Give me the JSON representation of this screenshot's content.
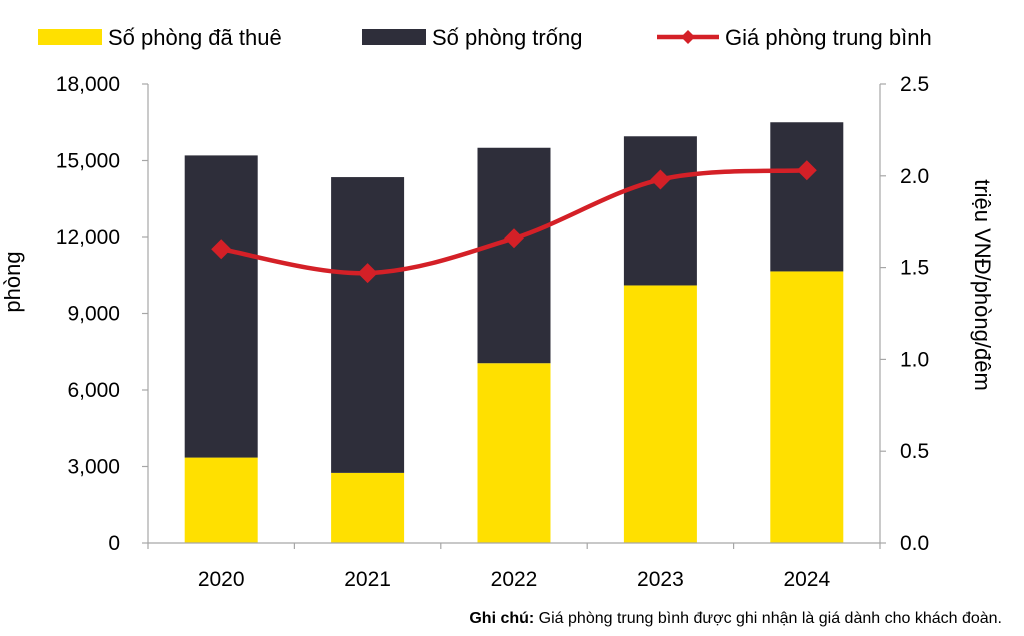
{
  "chart_data": {
    "type": "bar",
    "stacked": true,
    "categories": [
      "2020",
      "2021",
      "2022",
      "2023",
      "2024"
    ],
    "series": [
      {
        "name": "Số phòng đã thuê",
        "type": "bar",
        "axis": "left",
        "color": "#FFE000",
        "values": [
          3350,
          2750,
          7050,
          10100,
          10650
        ]
      },
      {
        "name": "Số phòng trống",
        "type": "bar",
        "axis": "left",
        "color": "#2E2E3A",
        "values": [
          11850,
          11600,
          8450,
          5850,
          5850
        ]
      },
      {
        "name": "Giá phòng trung bình",
        "type": "line",
        "axis": "right",
        "color": "#D42027",
        "values": [
          1.6,
          1.47,
          1.66,
          1.98,
          2.03
        ]
      }
    ],
    "ylabel": "phòng",
    "y2label": "triệu VNĐ/phòng/đêm",
    "ylim": [
      0,
      18000
    ],
    "y2lim": [
      0,
      2.5
    ],
    "yticks": [
      "0",
      "3,000",
      "6,000",
      "9,000",
      "12,000",
      "15,000",
      "18,000"
    ],
    "y2ticks": [
      "0.0",
      "0.5",
      "1.0",
      "1.5",
      "2.0",
      "2.5"
    ],
    "legend_position": "top",
    "grid": false
  },
  "note": {
    "label": "Ghi chú:",
    "text": " Giá phòng trung bình được ghi nhận là giá dành cho khách đoàn."
  }
}
